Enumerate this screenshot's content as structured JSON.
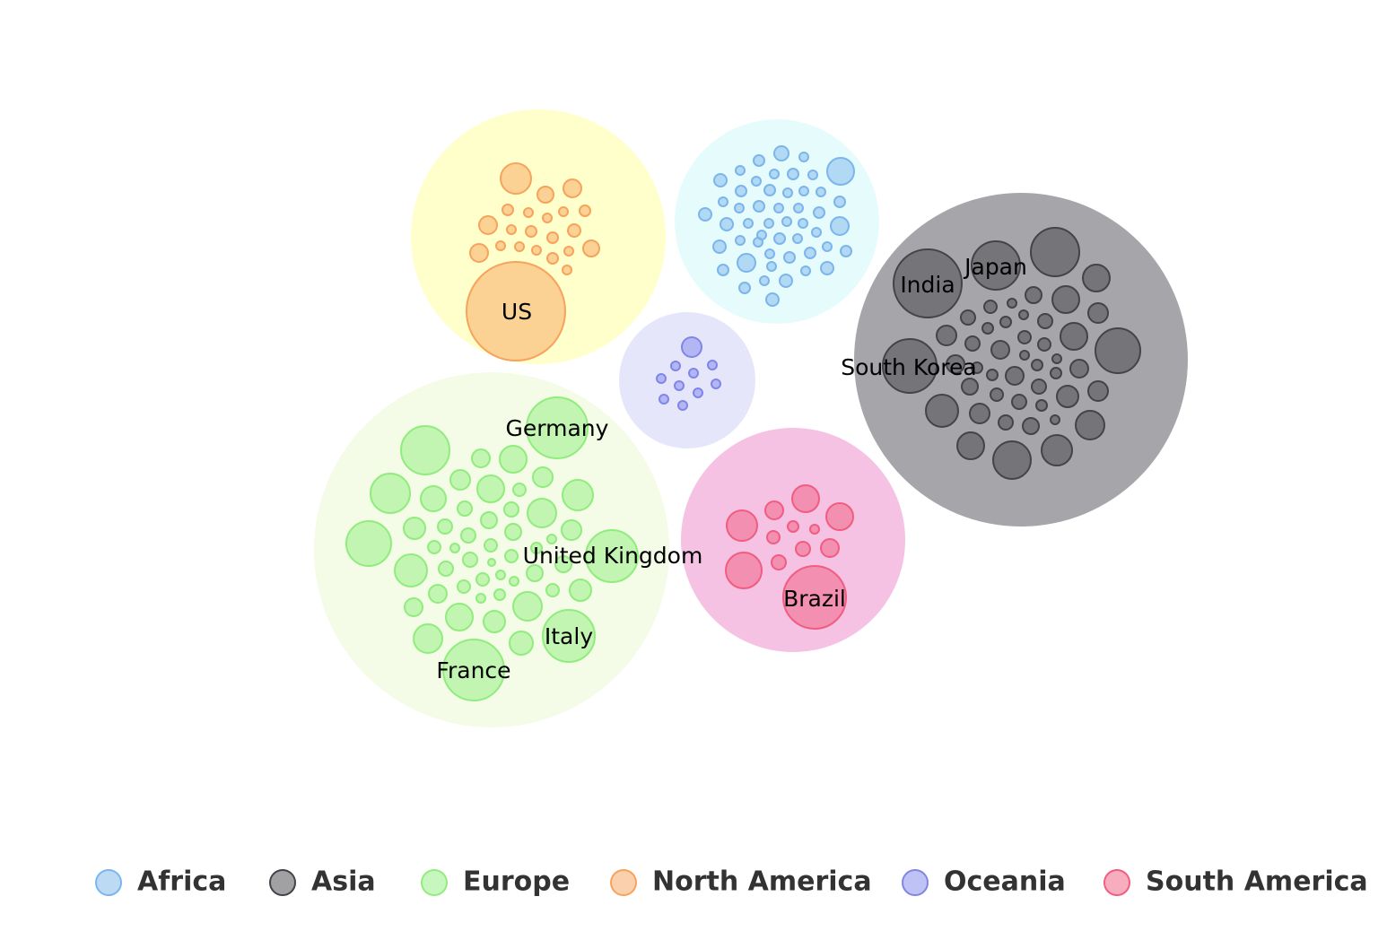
{
  "chart_data": {
    "type": "packed-bubble",
    "title": "",
    "legend": {
      "position": "bottom",
      "items": [
        {
          "name": "Africa",
          "color": "#7cb5ec"
        },
        {
          "name": "Asia",
          "color": "#434348"
        },
        {
          "name": "Europe",
          "color": "#90ed7d"
        },
        {
          "name": "North America",
          "color": "#f7a35c"
        },
        {
          "name": "Oceania",
          "color": "#8085e9"
        },
        {
          "name": "South America",
          "color": "#f15c80"
        }
      ]
    },
    "series": [
      {
        "name": "Africa",
        "color": "#7cb5ec",
        "parent_color": "#e6fcfc",
        "labeled_points": []
      },
      {
        "name": "Asia",
        "color": "#434348",
        "parent_color": "#a6a6aa",
        "labeled_points": [
          "India",
          "Japan",
          "South Korea"
        ]
      },
      {
        "name": "Europe",
        "color": "#90ed7d",
        "parent_color": "#f4fbe6",
        "labeled_points": [
          "Germany",
          "United Kingdom",
          "Italy",
          "France"
        ]
      },
      {
        "name": "North America",
        "color": "#f7a35c",
        "parent_color": "#ffffcc",
        "labeled_points": [
          "US"
        ]
      },
      {
        "name": "Oceania",
        "color": "#8085e9",
        "parent_color": "#e6e6fa",
        "labeled_points": []
      },
      {
        "name": "South America",
        "color": "#f15c80",
        "parent_color": "#f5c2e3",
        "labeled_points": [
          "Brazil"
        ]
      }
    ]
  }
}
